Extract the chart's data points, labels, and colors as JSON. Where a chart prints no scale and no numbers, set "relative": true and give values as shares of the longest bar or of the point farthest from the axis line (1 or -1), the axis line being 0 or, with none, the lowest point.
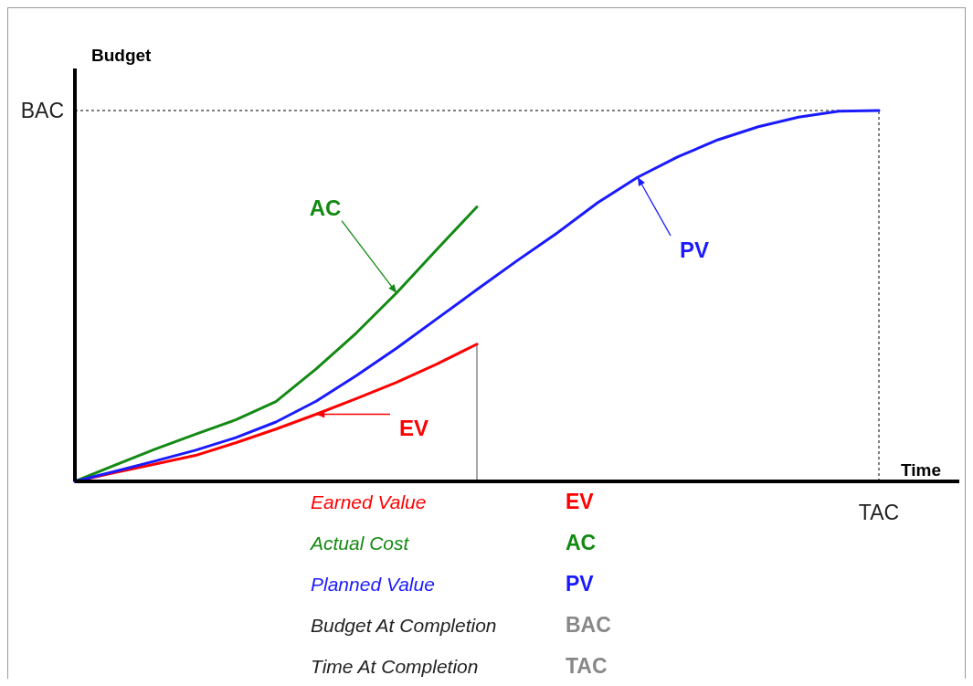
{
  "chart_data": {
    "type": "line",
    "relative": true,
    "xlabel": "Time",
    "ylabel": "Budget",
    "marker": "none",
    "line_style": "solid",
    "categories": [
      null,
      null,
      null,
      null,
      null,
      null,
      null,
      null,
      null,
      null,
      null,
      null,
      null,
      null,
      null,
      null,
      null,
      null,
      null,
      null,
      null
    ],
    "series": [
      {
        "color": "#ff0000",
        "values": [
          0,
          0.024,
          0.047,
          0.07,
          0.104,
          0.141,
          0.181,
          0.223,
          0.267,
          0.316,
          0.37,
          null,
          null,
          null,
          null,
          null,
          null,
          null,
          null,
          null,
          null
        ]
      },
      {
        "color": "#138a13",
        "values": [
          0,
          0.044,
          0.087,
          0.127,
          0.166,
          0.215,
          0.303,
          0.4,
          0.508,
          0.625,
          0.74,
          null,
          null,
          null,
          null,
          null,
          null,
          null,
          null,
          null,
          null
        ]
      },
      {
        "color": "#1a1aff",
        "values": [
          0,
          0.027,
          0.055,
          0.084,
          0.118,
          0.16,
          0.216,
          0.285,
          0.359,
          0.438,
          0.517,
          0.595,
          0.67,
          0.751,
          0.82,
          0.875,
          0.921,
          0.956,
          0.982,
          0.998,
          1
        ]
      }
    ],
    "ref_lines": [
      {
        "axis": "y",
        "value": 1,
        "label": "BAC",
        "color": "#555555",
        "line_style": "dotted"
      },
      {
        "axis": "x",
        "label": "TAC",
        "color": "#555555",
        "line_style": "dotted"
      }
    ],
    "annotations": [
      "EV",
      "AC",
      "PV",
      "Earned Value",
      "EV",
      "Actual Cost",
      "AC",
      "Planned Value",
      "PV",
      "Budget At Completion",
      "BAC",
      "Time At Completion",
      "TAC"
    ]
  }
}
